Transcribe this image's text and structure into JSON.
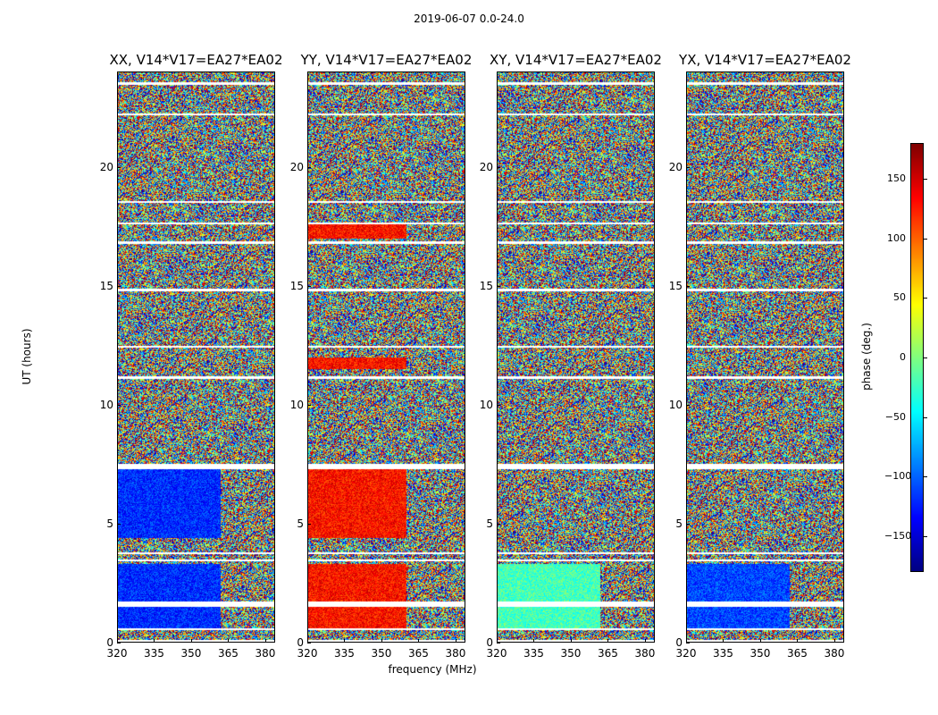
{
  "figure_title": "2019-06-07 0.0-24.0",
  "colors": {
    "colormap": "jet"
  },
  "chart_data": [
    {
      "type": "heatmap",
      "title": "XX, V14*V17=EA27*EA02",
      "xlabel": "frequency (MHz)",
      "ylabel": "UT (hours)",
      "xlim": [
        320,
        384
      ],
      "ylim": [
        0,
        24
      ],
      "xticks": [
        "320",
        "335",
        "350",
        "365",
        "380"
      ],
      "yticks": [
        "0",
        "5",
        "10",
        "15",
        "20"
      ],
      "colorbar_label": "phase (deg.)",
      "clim": [
        -180,
        180
      ],
      "bias": -120,
      "bias_segments": [
        [
          0.5,
          3.3
        ],
        [
          4.4,
          7.3
        ]
      ],
      "bias_freq_max": 362
    },
    {
      "type": "heatmap",
      "title": "YY, V14*V17=EA27*EA02",
      "xlabel": "frequency (MHz)",
      "ylabel": "UT (hours)",
      "xlim": [
        320,
        384
      ],
      "ylim": [
        0,
        24
      ],
      "xticks": [
        "320",
        "335",
        "350",
        "365",
        "380"
      ],
      "yticks": [
        "0",
        "5",
        "10",
        "15",
        "20"
      ],
      "colorbar_label": "phase (deg.)",
      "clim": [
        -180,
        180
      ],
      "bias": 130,
      "bias_segments": [
        [
          0.5,
          3.3
        ],
        [
          4.4,
          7.3
        ],
        [
          11.5,
          12.0
        ],
        [
          17.0,
          17.6
        ]
      ],
      "bias_freq_max": 360
    },
    {
      "type": "heatmap",
      "title": "XY, V14*V17=EA27*EA02",
      "xlabel": "frequency (MHz)",
      "ylabel": "UT (hours)",
      "xlim": [
        320,
        384
      ],
      "ylim": [
        0,
        24
      ],
      "xticks": [
        "320",
        "335",
        "350",
        "365",
        "380"
      ],
      "yticks": [
        "0",
        "5",
        "10",
        "15",
        "20"
      ],
      "colorbar_label": "phase (deg.)",
      "clim": [
        -180,
        180
      ],
      "bias": -20,
      "bias_segments": [
        [
          0.5,
          3.3
        ]
      ],
      "bias_freq_max": 362
    },
    {
      "type": "heatmap",
      "title": "YX, V14*V17=EA27*EA02",
      "xlabel": "frequency (MHz)",
      "ylabel": "UT (hours)",
      "xlim": [
        320,
        384
      ],
      "ylim": [
        0,
        24
      ],
      "xticks": [
        "320",
        "335",
        "350",
        "365",
        "380"
      ],
      "yticks": [
        "0",
        "5",
        "10",
        "15",
        "20"
      ],
      "colorbar_label": "phase (deg.)",
      "clim": [
        -180,
        180
      ],
      "bias": -110,
      "bias_segments": [
        [
          0.5,
          3.3
        ]
      ],
      "bias_freq_max": 362
    }
  ],
  "colorbar": {
    "label": "phase (deg.)",
    "ticks": [
      "150",
      "100",
      "50",
      "0",
      "−50",
      "−100",
      "−150"
    ],
    "tick_values": [
      150,
      100,
      50,
      0,
      -50,
      -100,
      -150
    ],
    "range": [
      -180,
      180
    ]
  },
  "gaps_hours": [
    [
      0.5,
      0.6
    ],
    [
      1.5,
      1.7
    ],
    [
      3.4,
      3.5
    ],
    [
      7.3,
      7.4
    ],
    [
      12.4,
      12.5
    ],
    [
      16.8,
      16.9
    ],
    [
      17.6,
      17.7
    ],
    [
      23.5,
      23.6
    ]
  ]
}
